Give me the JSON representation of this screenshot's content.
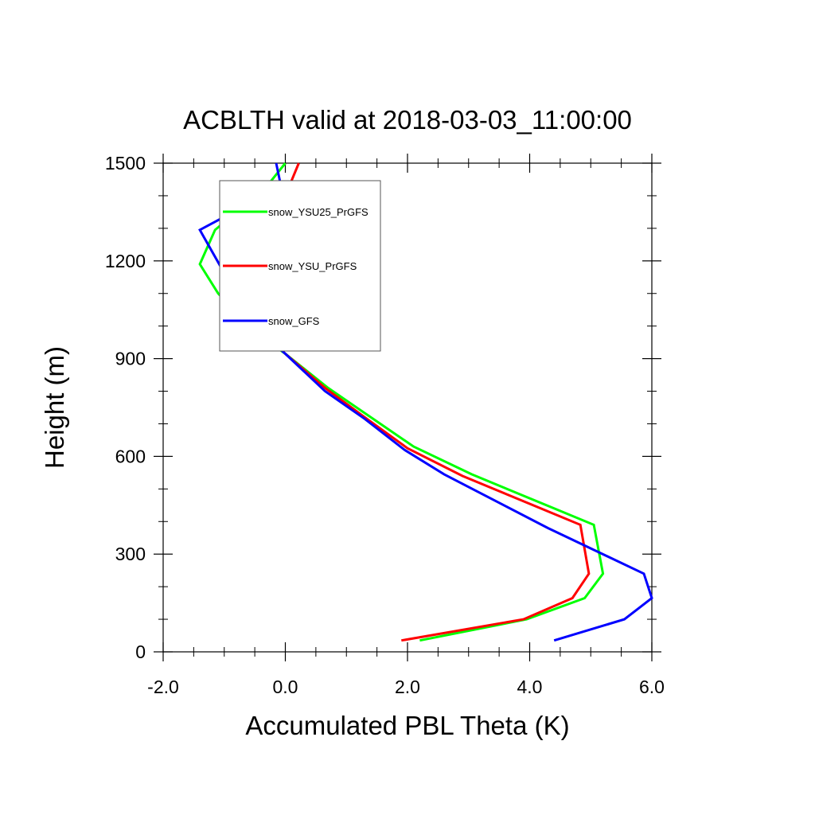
{
  "chart_data": {
    "type": "line",
    "title": "ACBLTH valid at 2018-03-03_11:00:00",
    "xlabel": "Accumulated PBL Theta (K)",
    "ylabel": "Height (m)",
    "xlim": [
      -2.0,
      6.0
    ],
    "ylim": [
      0,
      1500
    ],
    "xticks": [
      -2.0,
      0.0,
      2.0,
      4.0,
      6.0
    ],
    "xtick_labels": [
      "-2.0",
      "0.0",
      "2.0",
      "4.0",
      "6.0"
    ],
    "yticks": [
      0,
      300,
      600,
      900,
      1200,
      1500
    ],
    "ytick_labels": [
      "0",
      "300",
      "600",
      "900",
      "1200",
      "1500"
    ],
    "grid": false,
    "legend_position": "top-left",
    "series": [
      {
        "name": "snow_YSU25_PrGFS",
        "color": "#00ff00",
        "x": [
          2.2,
          3.95,
          4.9,
          5.2,
          5.05,
          3.05,
          2.1,
          1.4,
          0.7,
          0.0,
          -0.55,
          -1.1,
          -1.4,
          -1.15,
          -0.8,
          -0.3,
          0.0
        ],
        "y": [
          35,
          100,
          165,
          240,
          390,
          545,
          630,
          720,
          810,
          915,
          990,
          1100,
          1190,
          1295,
          1350,
          1430,
          1500
        ]
      },
      {
        "name": "snow_YSU_PrGFS",
        "color": "#ff0000",
        "x": [
          1.9,
          3.9,
          4.7,
          4.97,
          4.83,
          2.9,
          2.0,
          1.3,
          0.65,
          0.0,
          -0.45,
          -0.78,
          -0.78,
          -0.4,
          0.0,
          0.22
        ],
        "y": [
          35,
          100,
          165,
          240,
          390,
          540,
          625,
          720,
          810,
          915,
          1000,
          1090,
          1180,
          1290,
          1400,
          1500
        ]
      },
      {
        "name": "snow_GFS",
        "color": "#0000ff",
        "x": [
          4.4,
          5.55,
          6.0,
          5.87,
          4.3,
          2.6,
          1.95,
          1.3,
          0.65,
          0.0,
          -0.45,
          -0.78,
          -1.4,
          -0.75,
          -0.05,
          -0.15
        ],
        "y": [
          35,
          100,
          165,
          240,
          380,
          545,
          620,
          715,
          800,
          915,
          990,
          1090,
          1295,
          1360,
          1410,
          1500
        ]
      }
    ]
  }
}
